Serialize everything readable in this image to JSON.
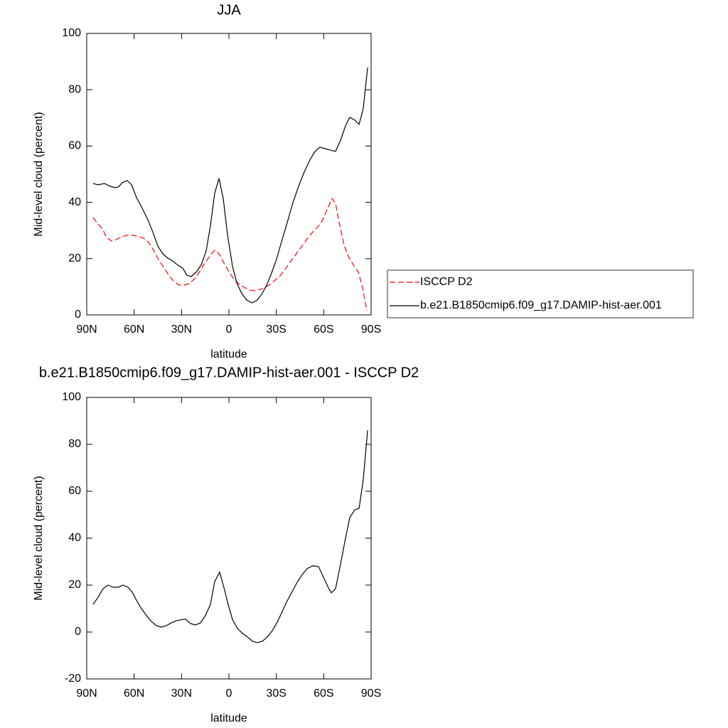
{
  "chart_data": [
    {
      "type": "line",
      "title": "JJA",
      "xlabel": "latitude",
      "ylabel": "Mid-level cloud (percent)",
      "xlim": [
        90,
        -90
      ],
      "ylim": [
        0,
        100
      ],
      "xticks": [
        {
          "value": 90,
          "label": "90N"
        },
        {
          "value": 60,
          "label": "60N"
        },
        {
          "value": 30,
          "label": "30N"
        },
        0,
        {
          "value": -30,
          "label": "30S"
        },
        {
          "value": -60,
          "label": "60S"
        },
        {
          "value": -90,
          "label": "90S"
        }
      ],
      "yticks": [
        0,
        20,
        40,
        60,
        80,
        100
      ],
      "legend": "right",
      "series": [
        {
          "name": "ISCCP D2",
          "color": "#ff0000",
          "dash": "dashed",
          "x": [
            86,
            83.3,
            80.1,
            77.4,
            74.3,
            71.1,
            68,
            64.4,
            60.8,
            57.2,
            54,
            50.9,
            47.7,
            44.6,
            41,
            37.8,
            34.7,
            31.5,
            28.4,
            25.2,
            21.6,
            18.5,
            15.3,
            11.7,
            9,
            5.9,
            2.7,
            -0.5,
            -3.6,
            -7.2,
            -10.4,
            -13.5,
            -16.7,
            -19.8,
            -23,
            -26.1,
            -29.3,
            -32.4,
            -35.6,
            -38.7,
            -42.3,
            -45.9,
            -49.5,
            -53.1,
            -56.7,
            -59.4,
            -62.1,
            -65.3,
            -67.5,
            -69.8,
            -72.9,
            -76.1,
            -79.2,
            -82,
            -84.6,
            -87.3
          ],
          "values": [
            34.6,
            32.6,
            30.6,
            27.5,
            26.3,
            26.8,
            27.8,
            28.3,
            28.3,
            27.8,
            27.3,
            25.8,
            23,
            19.7,
            16.7,
            13.9,
            11.9,
            10.6,
            10.6,
            11.1,
            12.9,
            15.4,
            18.4,
            21.2,
            23,
            21.5,
            17.9,
            14.9,
            12.4,
            10.6,
            9.6,
            8.8,
            8.6,
            9.1,
            9.8,
            10.9,
            12.4,
            13.9,
            16.2,
            18.7,
            21.5,
            24.2,
            27,
            29.5,
            31.6,
            33.8,
            37.4,
            41.4,
            39.6,
            32.8,
            24.7,
            20.2,
            17.4,
            15.2,
            9.6,
            1.5
          ]
        },
        {
          "name": "b.e21.B1850cmip6.f09_g17.DAMIP-hist-aer.001",
          "color": "#000000",
          "dash": "solid",
          "x": [
            86,
            82.8,
            78.8,
            75.2,
            72,
            69.8,
            67.5,
            64.4,
            61.6,
            58.5,
            54.9,
            51.3,
            48.2,
            45,
            41.9,
            38.7,
            35.6,
            32.4,
            29.3,
            26.6,
            23.9,
            20.7,
            17.6,
            14.4,
            11.7,
            9,
            6.3,
            3.6,
            0.9,
            -2.3,
            -5,
            -8.1,
            -11.3,
            -14.4,
            -17.6,
            -20.7,
            -23.9,
            -27,
            -30.2,
            -33.3,
            -36.9,
            -40.5,
            -44.1,
            -47.7,
            -51.3,
            -54.5,
            -57.6,
            -60.8,
            -63.9,
            -67.5,
            -70.7,
            -73.8,
            -76.5,
            -79.7,
            -82.4,
            -85,
            -87.8
          ],
          "values": [
            46.7,
            46.2,
            46.7,
            45.7,
            45.2,
            45.5,
            47,
            47.7,
            46.2,
            41.7,
            37.9,
            33.8,
            29.5,
            24.5,
            21.7,
            20.2,
            19.2,
            17.7,
            16.7,
            14.1,
            13.6,
            15.2,
            17.7,
            22.7,
            31.8,
            43.2,
            48.5,
            41.4,
            28.5,
            17.2,
            11.4,
            7.6,
            5.3,
            4.3,
            5.1,
            7.3,
            10.6,
            14.9,
            19.9,
            26,
            32.8,
            39.9,
            45.7,
            50.8,
            55.1,
            58.1,
            59.6,
            59.1,
            58.6,
            58.1,
            62.1,
            67.2,
            70.2,
            69.2,
            67.7,
            73.2,
            87.9
          ]
        }
      ]
    },
    {
      "type": "line",
      "title": "b.e21.B1850cmip6.f09_g17.DAMIP-hist-aer.001 - ISCCP D2",
      "xlabel": "latitude",
      "ylabel": "Mid-level cloud (percent)",
      "xlim": [
        90,
        -90
      ],
      "ylim": [
        -20,
        100
      ],
      "xticks": [
        {
          "value": 90,
          "label": "90N"
        },
        {
          "value": 60,
          "label": "60N"
        },
        {
          "value": 30,
          "label": "30N"
        },
        0,
        {
          "value": -30,
          "label": "30S"
        },
        {
          "value": -60,
          "label": "60S"
        },
        {
          "value": -90,
          "label": "90S"
        }
      ],
      "yticks": [
        -20,
        0,
        20,
        40,
        60,
        80,
        100
      ],
      "series": [
        {
          "color": "#000000",
          "dash": "solid",
          "x": [
            86,
            82.8,
            79.7,
            76.5,
            73.4,
            70.2,
            67.1,
            63.9,
            61.2,
            58.1,
            55.4,
            52.2,
            49.1,
            45.9,
            42.8,
            39.6,
            36.5,
            33.3,
            30.6,
            27.5,
            24.3,
            21.2,
            18,
            14.9,
            11.7,
            9,
            5.9,
            3.2,
            0.5,
            -2.3,
            -5.4,
            -8.6,
            -11.7,
            -14.9,
            -18,
            -21.2,
            -24.3,
            -27.5,
            -30.6,
            -33.8,
            -36.9,
            -40.1,
            -43.2,
            -46.4,
            -49.5,
            -53.1,
            -56.7,
            -59.9,
            -63,
            -64.8,
            -67.5,
            -70.7,
            -73.8,
            -76.5,
            -79.7,
            -82.4,
            -85,
            -87.8
          ],
          "values": [
            11.8,
            14.8,
            18.5,
            20,
            19.1,
            19.1,
            20,
            19.1,
            17,
            13,
            10,
            7,
            4.5,
            2.7,
            2.1,
            2.7,
            3.9,
            4.8,
            5.2,
            5.5,
            3.6,
            3,
            3.9,
            7,
            11.8,
            21.5,
            25.5,
            19.1,
            11.8,
            5.2,
            1.5,
            -0.6,
            -2.1,
            -3.9,
            -4.5,
            -3.9,
            -2.1,
            0.6,
            4.2,
            8.8,
            13.3,
            17.3,
            21.2,
            24.5,
            27,
            28.2,
            27.9,
            23.3,
            18.8,
            16.7,
            18.5,
            29.1,
            40,
            48.8,
            52.1,
            52.7,
            64.8,
            86
          ]
        }
      ]
    }
  ]
}
